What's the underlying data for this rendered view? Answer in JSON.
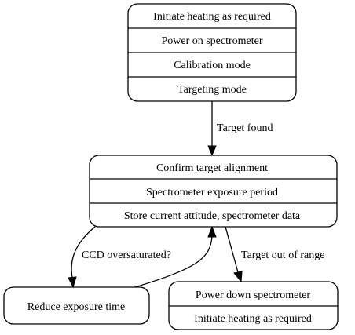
{
  "nodes": {
    "startup": {
      "rows": [
        "Initiate heating as required",
        "Power on spectrometer",
        "Calibration mode",
        "Targeting mode"
      ]
    },
    "observe": {
      "rows": [
        "Confirm target alignment",
        "Spectrometer exposure period",
        "Store current attitude, spectrometer data"
      ]
    },
    "reduce": {
      "label": "Reduce exposure time"
    },
    "shutdown": {
      "rows": [
        "Power down spectrometer",
        "Initiate heating as required"
      ]
    }
  },
  "edges": {
    "target_found": "Target found",
    "ccd_oversaturated": "CCD oversaturated?",
    "target_out_of_range": "Target out of range"
  }
}
